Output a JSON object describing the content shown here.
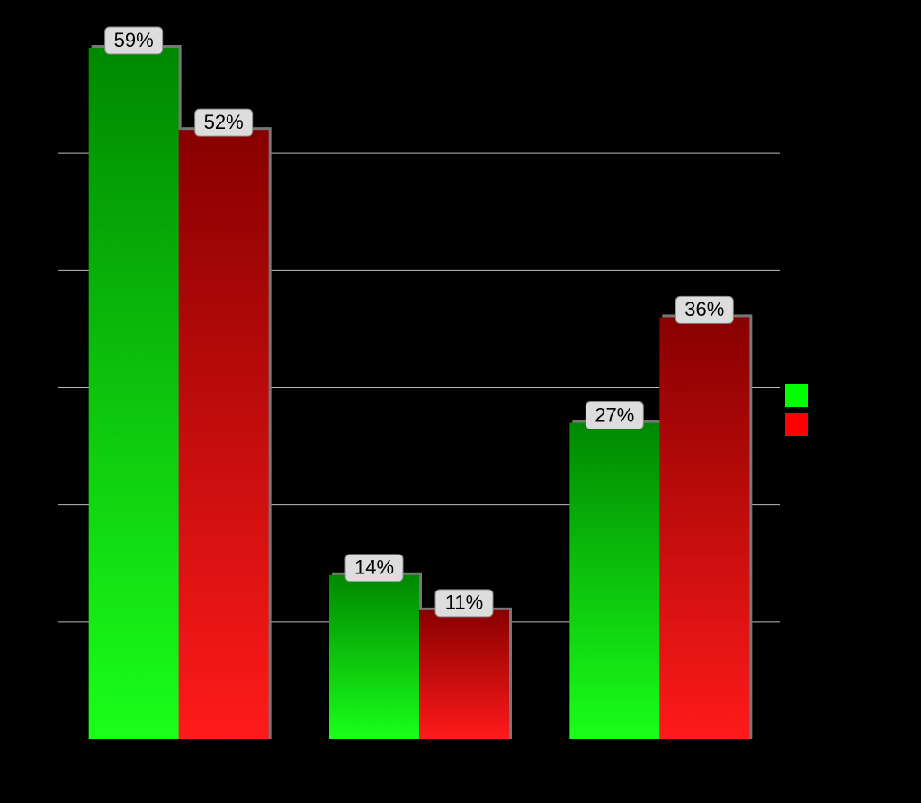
{
  "chart_data": {
    "type": "bar",
    "categories": [
      null,
      null,
      null
    ],
    "series": [
      {
        "color": "#00ff00",
        "values": [
          59,
          14,
          27
        ],
        "value_labels": [
          "59%",
          "14%",
          "27%"
        ]
      },
      {
        "color": "#ff0000",
        "values": [
          52,
          11,
          36
        ],
        "value_labels": [
          "52%",
          "11%",
          "36%"
        ]
      }
    ],
    "ylim": [
      0,
      60
    ],
    "yticks": [
      0,
      10,
      20,
      30,
      40,
      50
    ],
    "grid": true,
    "legend": "right"
  }
}
